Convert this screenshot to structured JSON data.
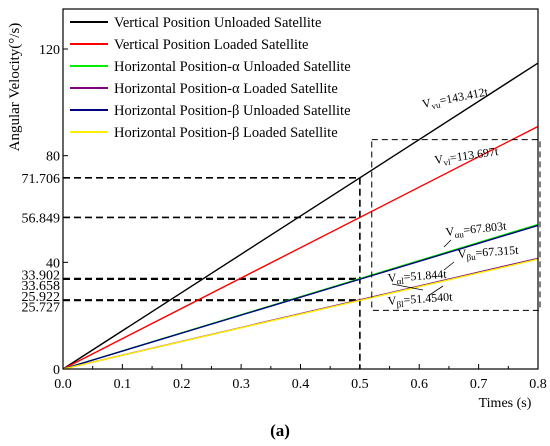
{
  "chart_data": {
    "type": "line",
    "caption": "(a)",
    "xlabel": "Times (s)",
    "ylabel": "Angular Velocity(°/s)",
    "xlim": [
      0,
      0.8
    ],
    "ylim": [
      0,
      135
    ],
    "x_ticks": [
      "0.0",
      "0.1",
      "0.2",
      "0.3",
      "0.4",
      "0.5",
      "0.6",
      "0.7",
      "0.8"
    ],
    "x_tick_values": [
      0,
      0.1,
      0.2,
      0.3,
      0.4,
      0.5,
      0.6,
      0.7,
      0.8
    ],
    "y_ticks": [
      {
        "value": 0,
        "label": "0"
      },
      {
        "value": 25.727,
        "label": "25.727"
      },
      {
        "value": 25.922,
        "label": "25.922"
      },
      {
        "value": 33.658,
        "label": "33.658"
      },
      {
        "value": 33.902,
        "label": "33.902"
      },
      {
        "value": 40,
        "label": "40"
      },
      {
        "value": 56.849,
        "label": "56.849"
      },
      {
        "value": 71.706,
        "label": "71.706"
      },
      {
        "value": 80,
        "label": "80"
      },
      {
        "value": 120,
        "label": "120"
      }
    ],
    "series": [
      {
        "name": "Vertical Position Unloaded  Satellite",
        "slope": 143.412,
        "x": [
          0,
          0.8
        ],
        "y": [
          0,
          114.73
        ],
        "color": "#000000",
        "equation_prefix": "V",
        "equation_sub": "vu",
        "equation_suffix": "=143.412t"
      },
      {
        "name": "Vertical Position Loaded  Satellite",
        "slope": 113.697,
        "x": [
          0,
          0.8
        ],
        "y": [
          0,
          90.96
        ],
        "color": "#ff0000",
        "equation_prefix": "V",
        "equation_sub": "vl",
        "equation_suffix": "=113.697t"
      },
      {
        "name": "Horizontal Position-α Unloaded  Satellite",
        "slope": 67.803,
        "x": [
          0,
          0.8
        ],
        "y": [
          0,
          54.24
        ],
        "color": "#00ee00",
        "equation_prefix": "V",
        "equation_sub": "αu",
        "equation_suffix": "=67.803t"
      },
      {
        "name": "Horizontal Position-α Loaded  Satellite",
        "slope": 51.844,
        "x": [
          0,
          0.8
        ],
        "y": [
          0,
          41.48
        ],
        "color": "#800080",
        "equation_prefix": "V",
        "equation_sub": "αl",
        "equation_suffix": "=51.844t"
      },
      {
        "name": "Horizontal Position-β Unloaded  Satellite",
        "slope": 67.315,
        "x": [
          0,
          0.8
        ],
        "y": [
          0,
          53.85
        ],
        "color": "#000080",
        "equation_prefix": "V",
        "equation_sub": "βu",
        "equation_suffix": "=67.315t"
      },
      {
        "name": "Horizontal Position-β Loaded  Satellite",
        "slope": 51.454,
        "x": [
          0,
          0.8
        ],
        "y": [
          0,
          41.16
        ],
        "color": "#ffee00",
        "equation_prefix": "V",
        "equation_sub": "βl",
        "equation_suffix": "=51.4540t"
      }
    ],
    "reference_lines": {
      "x": 0.5,
      "y_values": [
        71.706,
        56.849,
        33.902,
        33.658,
        25.922,
        25.727
      ]
    },
    "highlight_box": {
      "x_range": [
        0.52,
        0.8
      ],
      "y_range": [
        22,
        86
      ]
    },
    "legend_position": "top-left",
    "grid": false
  }
}
